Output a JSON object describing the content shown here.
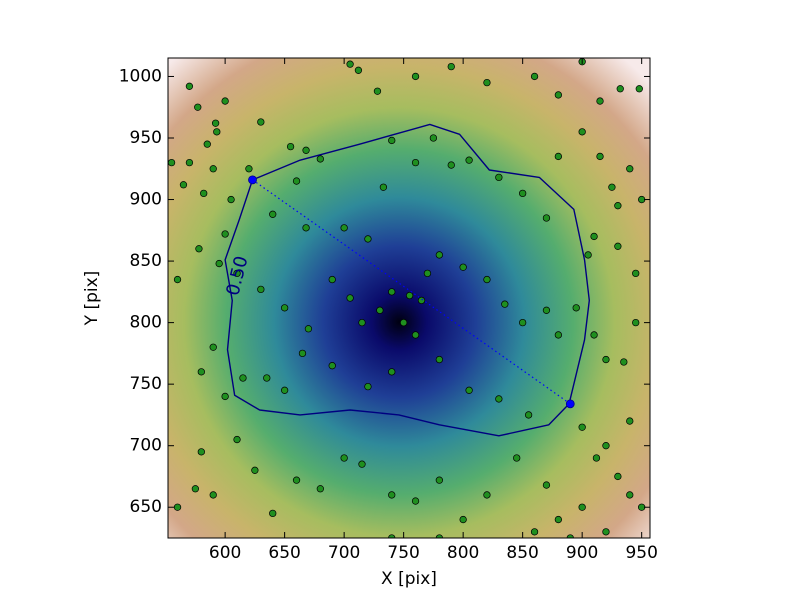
{
  "chart_data": {
    "type": "scatter",
    "xlabel": "X [pix]",
    "ylabel": "Y [pix]",
    "xlim": [
      552,
      957
    ],
    "ylim": [
      625,
      1015
    ],
    "xticks": [
      600,
      650,
      700,
      750,
      800,
      850,
      900,
      950
    ],
    "yticks": [
      650,
      700,
      750,
      800,
      850,
      900,
      950,
      1000
    ],
    "series": [
      {
        "color": "#1f8f1f",
        "x": [
          570,
          577,
          592,
          600,
          630,
          655,
          668,
          680,
          705,
          728,
          712,
          760,
          790,
          820,
          860,
          880,
          915,
          948,
          932,
          900,
          570,
          585,
          590,
          593,
          605,
          600,
          582,
          565,
          555,
          620,
          640,
          660,
          668,
          700,
          720,
          733,
          740,
          760,
          775,
          790,
          805,
          830,
          850,
          870,
          880,
          900,
          915,
          925,
          940,
          950,
          930,
          910,
          905,
          930,
          945,
          560,
          578,
          595,
          610,
          630,
          650,
          670,
          690,
          705,
          715,
          730,
          740,
          755,
          765,
          750,
          770,
          780,
          800,
          820,
          835,
          850,
          870,
          880,
          895,
          910,
          945,
          920,
          935,
          580,
          590,
          600,
          615,
          635,
          650,
          665,
          690,
          720,
          740,
          760,
          780,
          805,
          830,
          855,
          900,
          920,
          940,
          912,
          930,
          560,
          575,
          580,
          590,
          610,
          625,
          640,
          660,
          680,
          700,
          715,
          740,
          760,
          780,
          800,
          820,
          845,
          870,
          880,
          900,
          920,
          940,
          950,
          890,
          860,
          780,
          740
        ],
        "y": [
          992,
          975,
          962,
          980,
          963,
          943,
          940,
          933,
          1010,
          988,
          1005,
          1000,
          1008,
          995,
          1000,
          985,
          980,
          990,
          990,
          1012,
          930,
          945,
          925,
          955,
          900,
          872,
          905,
          912,
          930,
          925,
          888,
          915,
          877,
          877,
          868,
          910,
          948,
          930,
          950,
          928,
          932,
          918,
          905,
          885,
          935,
          955,
          935,
          910,
          925,
          900,
          895,
          870,
          855,
          862,
          840,
          835,
          860,
          848,
          840,
          827,
          812,
          795,
          835,
          820,
          800,
          810,
          825,
          822,
          818,
          800,
          840,
          855,
          845,
          835,
          815,
          800,
          810,
          790,
          812,
          790,
          800,
          770,
          768,
          760,
          780,
          740,
          755,
          755,
          745,
          775,
          765,
          748,
          760,
          790,
          770,
          745,
          738,
          725,
          715,
          700,
          720,
          690,
          675,
          650,
          665,
          695,
          660,
          705,
          680,
          645,
          672,
          665,
          690,
          685,
          660,
          655,
          672,
          640,
          660,
          690,
          668,
          640,
          650,
          630,
          660,
          650,
          625,
          630,
          625,
          625
        ]
      }
    ],
    "contour": {
      "level": {
        "value": 0.5,
        "label": "0.50"
      },
      "color": "#000080",
      "x": [
        623,
        663,
        713,
        772,
        797,
        822,
        864,
        893,
        902,
        906,
        902,
        889,
        872,
        830,
        780,
        746,
        705,
        663,
        629,
        608,
        602,
        606,
        600,
        612
      ],
      "y": [
        916,
        932,
        945,
        961,
        953,
        924,
        918,
        892,
        851,
        818,
        786,
        734,
        717,
        708,
        717,
        725,
        729,
        725,
        729,
        741,
        778,
        818,
        851,
        884
      ]
    },
    "line": {
      "color": "#0000ff",
      "x": [
        623,
        890
      ],
      "y": [
        916,
        734
      ]
    }
  }
}
